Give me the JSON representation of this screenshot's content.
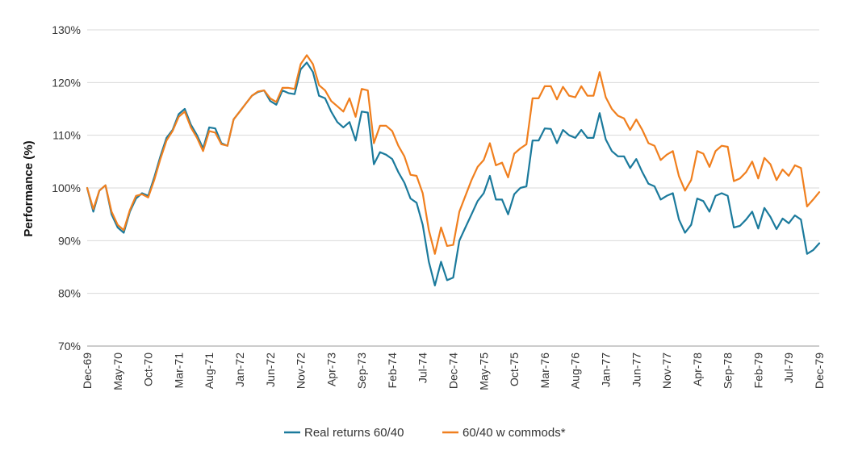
{
  "chart_data": {
    "type": "line",
    "title": "",
    "xlabel": "",
    "ylabel": "Performance (%)",
    "ylim": [
      70,
      130
    ],
    "y_ticks": [
      70,
      80,
      90,
      100,
      110,
      120,
      130
    ],
    "y_tick_suffix": "%",
    "grid": "horizontal",
    "x_tick_labels": [
      "Dec-69",
      "May-70",
      "Oct-70",
      "Mar-71",
      "Aug-71",
      "Jan-72",
      "Jun-72",
      "Nov-72",
      "Apr-73",
      "Sep-73",
      "Feb-74",
      "Jul-74",
      "Dec-74",
      "May-75",
      "Oct-75",
      "Mar-76",
      "Aug-76",
      "Jan-77",
      "Jun-77",
      "Nov-77",
      "Apr-78",
      "Sep-78",
      "Feb-79",
      "Jul-79",
      "Dec-79"
    ],
    "x_tick_step_months": 5,
    "n_months": 121,
    "legend_position": "bottom-center",
    "series": [
      {
        "name": "Real returns 60/40",
        "color": "#1b7a9c",
        "anchors": [
          [
            0,
            100
          ],
          [
            1,
            95.5
          ],
          [
            2,
            99.5
          ],
          [
            3,
            100.5
          ],
          [
            4,
            95
          ],
          [
            5,
            92.5
          ],
          [
            6,
            91.5
          ],
          [
            7,
            95.5
          ],
          [
            8,
            98
          ],
          [
            9,
            99
          ],
          [
            10,
            98.5
          ],
          [
            11,
            102
          ],
          [
            12,
            106
          ],
          [
            13,
            109.5
          ],
          [
            14,
            111
          ],
          [
            15,
            114
          ],
          [
            16,
            115
          ],
          [
            17,
            112
          ],
          [
            18,
            110
          ],
          [
            19,
            107.5
          ],
          [
            20,
            111.5
          ],
          [
            21,
            111.3
          ],
          [
            22,
            108.5
          ],
          [
            23,
            108
          ],
          [
            24,
            113
          ],
          [
            25,
            114.5
          ],
          [
            26,
            116
          ],
          [
            27,
            117.5
          ],
          [
            28,
            118.2
          ],
          [
            29,
            118.5
          ],
          [
            30,
            116.5
          ],
          [
            31,
            115.8
          ],
          [
            32,
            118.5
          ],
          [
            33,
            118
          ],
          [
            34,
            117.8
          ],
          [
            35,
            122.5
          ],
          [
            36,
            123.8
          ],
          [
            37,
            122
          ],
          [
            38,
            117.5
          ],
          [
            39,
            117
          ],
          [
            40,
            114.5
          ],
          [
            41,
            112.5
          ],
          [
            42,
            111.5
          ],
          [
            43,
            112.5
          ],
          [
            44,
            109
          ],
          [
            45,
            114.5
          ],
          [
            46,
            114.3
          ],
          [
            47,
            104.5
          ],
          [
            48,
            106.8
          ],
          [
            49,
            106.3
          ],
          [
            50,
            105.5
          ],
          [
            51,
            103
          ],
          [
            52,
            101
          ],
          [
            53,
            98
          ],
          [
            54,
            97.2
          ],
          [
            55,
            93
          ],
          [
            56,
            86
          ],
          [
            57,
            81.5
          ],
          [
            58,
            86
          ],
          [
            59,
            82.5
          ],
          [
            60,
            83
          ],
          [
            61,
            90
          ],
          [
            62,
            92.5
          ],
          [
            63,
            95
          ],
          [
            64,
            97.5
          ],
          [
            65,
            99
          ],
          [
            66,
            102.3
          ],
          [
            67,
            97.8
          ],
          [
            68,
            97.8
          ],
          [
            69,
            95
          ],
          [
            70,
            98.8
          ],
          [
            71,
            100
          ],
          [
            72,
            100.3
          ],
          [
            73,
            109
          ],
          [
            74,
            109
          ],
          [
            75,
            111.3
          ],
          [
            76,
            111.2
          ],
          [
            77,
            108.5
          ],
          [
            78,
            111
          ],
          [
            79,
            110
          ],
          [
            80,
            109.5
          ],
          [
            81,
            111
          ],
          [
            82,
            109.5
          ],
          [
            83,
            109.5
          ],
          [
            84,
            114.2
          ],
          [
            85,
            109.2
          ],
          [
            86,
            107
          ],
          [
            87,
            106
          ],
          [
            88,
            106
          ],
          [
            89,
            103.8
          ],
          [
            90,
            105.5
          ],
          [
            91,
            103
          ],
          [
            92,
            100.8
          ],
          [
            93,
            100.3
          ],
          [
            94,
            97.8
          ],
          [
            95,
            98.5
          ],
          [
            96,
            99
          ],
          [
            97,
            94
          ],
          [
            98,
            91.5
          ],
          [
            99,
            93
          ],
          [
            100,
            98
          ],
          [
            101,
            97.5
          ],
          [
            102,
            95.5
          ],
          [
            103,
            98.5
          ],
          [
            104,
            99
          ],
          [
            105,
            98.5
          ],
          [
            106,
            92.5
          ],
          [
            107,
            92.8
          ],
          [
            108,
            94
          ],
          [
            109,
            95.5
          ],
          [
            110,
            92.3
          ],
          [
            111,
            96.2
          ],
          [
            112,
            94.5
          ],
          [
            113,
            92.2
          ],
          [
            114,
            94.2
          ],
          [
            115,
            93.3
          ],
          [
            116,
            94.8
          ],
          [
            117,
            94
          ],
          [
            118,
            87.5
          ],
          [
            119,
            88.2
          ],
          [
            120,
            89.5
          ]
        ]
      },
      {
        "name": "60/40 w commods*",
        "color": "#f07f1e",
        "anchors": [
          [
            0,
            100
          ],
          [
            1,
            96
          ],
          [
            2,
            99.5
          ],
          [
            3,
            100.5
          ],
          [
            4,
            95.5
          ],
          [
            5,
            93
          ],
          [
            6,
            92
          ],
          [
            7,
            95.8
          ],
          [
            8,
            98.5
          ],
          [
            9,
            98.8
          ],
          [
            10,
            98.2
          ],
          [
            11,
            101.5
          ],
          [
            12,
            105.5
          ],
          [
            13,
            109
          ],
          [
            14,
            110.8
          ],
          [
            15,
            113.5
          ],
          [
            16,
            114.5
          ],
          [
            17,
            111.5
          ],
          [
            18,
            109.5
          ],
          [
            19,
            107
          ],
          [
            20,
            110.8
          ],
          [
            21,
            110.5
          ],
          [
            22,
            108.3
          ],
          [
            23,
            108
          ],
          [
            24,
            113
          ],
          [
            25,
            114.5
          ],
          [
            26,
            116
          ],
          [
            27,
            117.5
          ],
          [
            28,
            118.3
          ],
          [
            29,
            118.5
          ],
          [
            30,
            117
          ],
          [
            31,
            116.3
          ],
          [
            32,
            119
          ],
          [
            33,
            119
          ],
          [
            34,
            118.8
          ],
          [
            35,
            123.5
          ],
          [
            36,
            125.2
          ],
          [
            37,
            123.5
          ],
          [
            38,
            119.5
          ],
          [
            39,
            118.5
          ],
          [
            40,
            116.5
          ],
          [
            41,
            115.5
          ],
          [
            42,
            114.5
          ],
          [
            43,
            117
          ],
          [
            44,
            113.5
          ],
          [
            45,
            118.8
          ],
          [
            46,
            118.5
          ],
          [
            47,
            108.5
          ],
          [
            48,
            111.8
          ],
          [
            49,
            111.8
          ],
          [
            50,
            110.8
          ],
          [
            51,
            108
          ],
          [
            52,
            106
          ],
          [
            53,
            102.5
          ],
          [
            54,
            102.3
          ],
          [
            55,
            99
          ],
          [
            56,
            92
          ],
          [
            57,
            87.5
          ],
          [
            58,
            92.5
          ],
          [
            59,
            89
          ],
          [
            60,
            89.2
          ],
          [
            61,
            95.5
          ],
          [
            62,
            98.5
          ],
          [
            63,
            101.5
          ],
          [
            64,
            104
          ],
          [
            65,
            105.3
          ],
          [
            66,
            108.5
          ],
          [
            67,
            104.3
          ],
          [
            68,
            104.8
          ],
          [
            69,
            102
          ],
          [
            70,
            106.5
          ],
          [
            71,
            107.5
          ],
          [
            72,
            108.3
          ],
          [
            73,
            117
          ],
          [
            74,
            117
          ],
          [
            75,
            119.3
          ],
          [
            76,
            119.3
          ],
          [
            77,
            116.8
          ],
          [
            78,
            119.2
          ],
          [
            79,
            117.5
          ],
          [
            80,
            117.2
          ],
          [
            81,
            119.3
          ],
          [
            82,
            117.5
          ],
          [
            83,
            117.5
          ],
          [
            84,
            122
          ],
          [
            85,
            117.2
          ],
          [
            86,
            115
          ],
          [
            87,
            113.7
          ],
          [
            88,
            113.2
          ],
          [
            89,
            111
          ],
          [
            90,
            113
          ],
          [
            91,
            111
          ],
          [
            92,
            108.5
          ],
          [
            93,
            108
          ],
          [
            94,
            105.3
          ],
          [
            95,
            106.3
          ],
          [
            96,
            107
          ],
          [
            97,
            102.2
          ],
          [
            98,
            99.5
          ],
          [
            99,
            101.5
          ],
          [
            100,
            107
          ],
          [
            101,
            106.5
          ],
          [
            102,
            104
          ],
          [
            103,
            107
          ],
          [
            104,
            108
          ],
          [
            105,
            107.8
          ],
          [
            106,
            101.3
          ],
          [
            107,
            101.8
          ],
          [
            108,
            103
          ],
          [
            109,
            105
          ],
          [
            110,
            101.8
          ],
          [
            111,
            105.7
          ],
          [
            112,
            104.5
          ],
          [
            113,
            101.5
          ],
          [
            114,
            103.5
          ],
          [
            115,
            102.3
          ],
          [
            116,
            104.3
          ],
          [
            117,
            103.8
          ],
          [
            118,
            96.5
          ],
          [
            119,
            97.8
          ],
          [
            120,
            99.2
          ]
        ]
      }
    ]
  }
}
